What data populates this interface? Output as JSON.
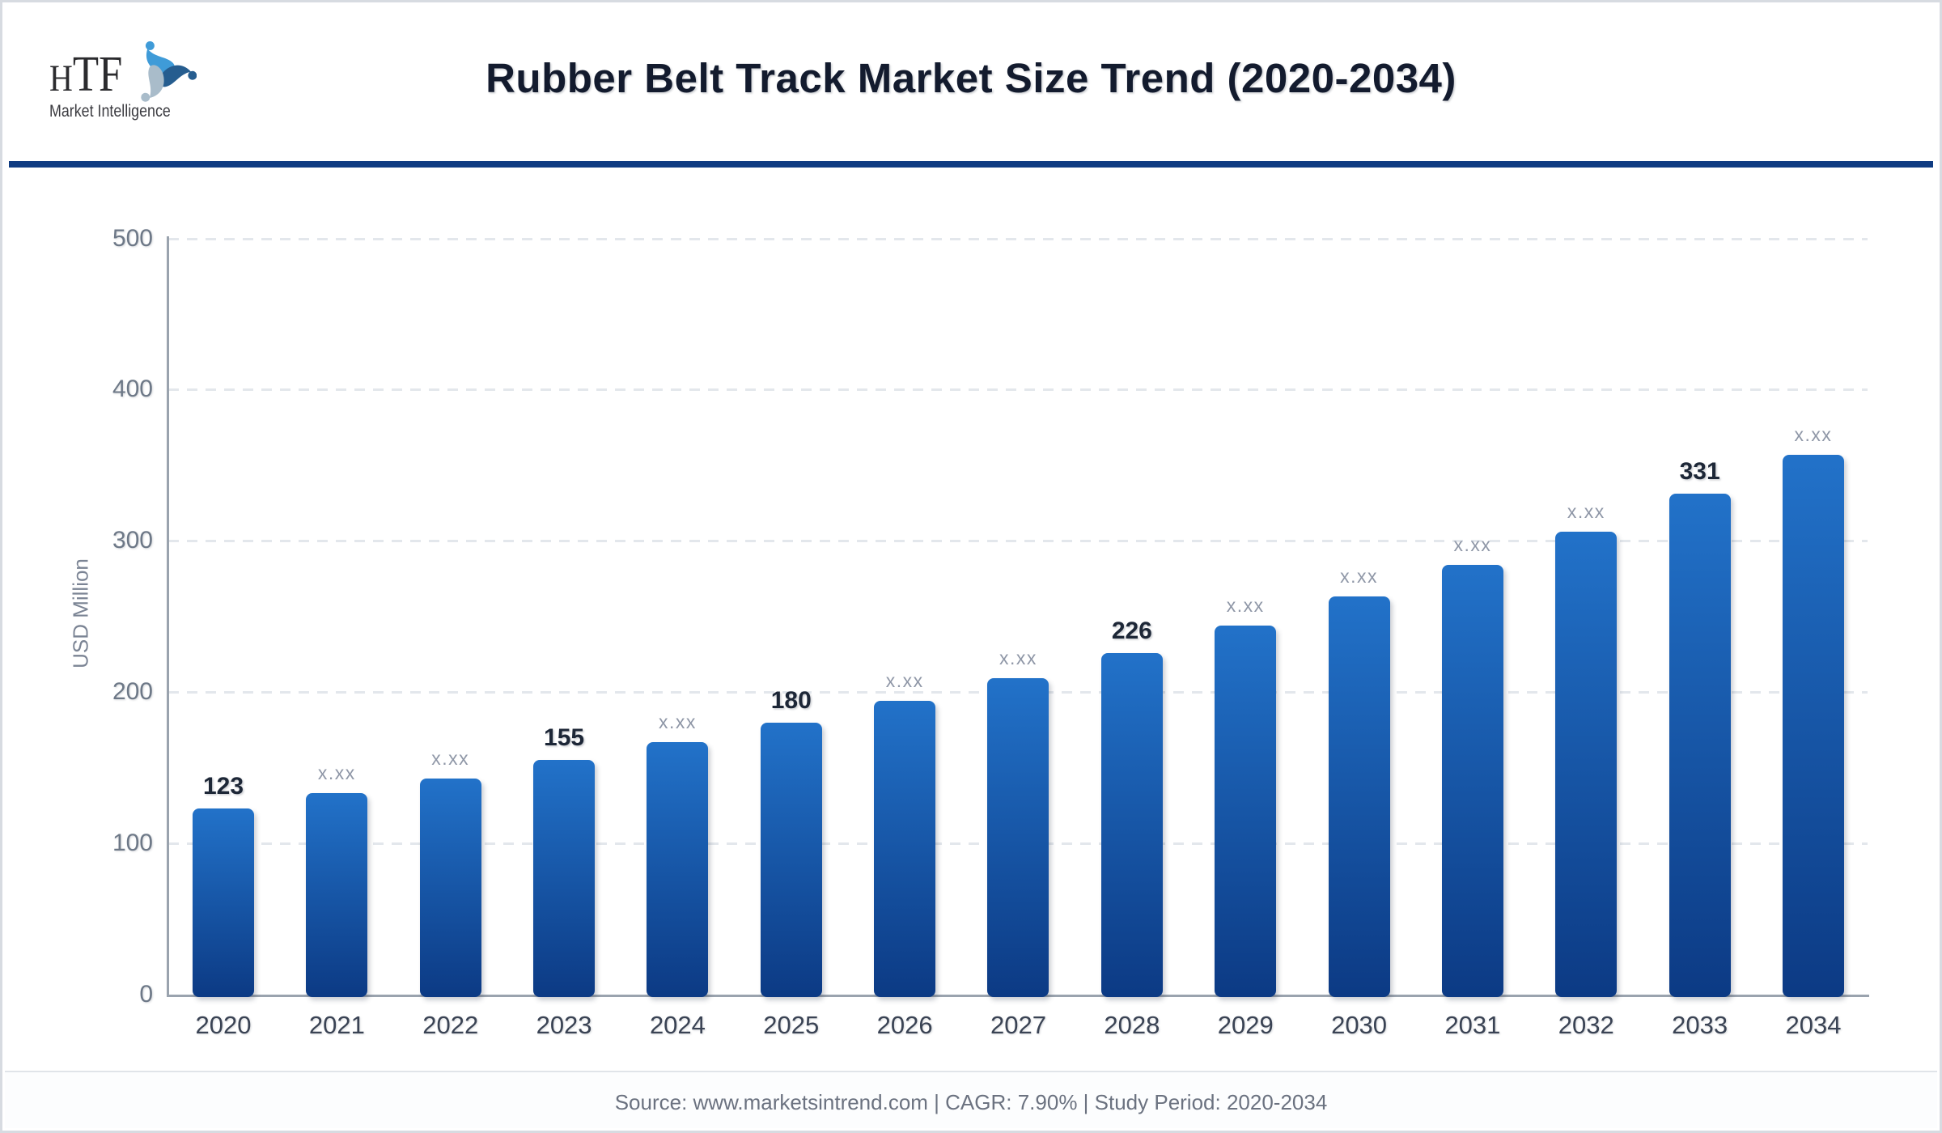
{
  "logo": {
    "acronym_h": "H",
    "acronym_tf": "TF",
    "subtitle": "Market Intelligence",
    "icon": "three-figures-swirl-icon",
    "icon_colors": {
      "light_blue": "#3f9bd8",
      "dark_blue": "#265d8f",
      "gray_blue": "#a9bcca"
    }
  },
  "header": {
    "title": "Rubber Belt Track Market Size Trend (2020-2034)"
  },
  "chart_data": {
    "type": "bar",
    "title": "Rubber Belt Track Market Size Trend (2020-2034)",
    "xlabel": "",
    "ylabel": "USD Million",
    "ylim": [
      0,
      500
    ],
    "yticks": [
      0,
      100,
      200,
      300,
      400,
      500
    ],
    "grid": "horizontal-dashed",
    "legend": "none",
    "categories": [
      "2020",
      "2021",
      "2022",
      "2023",
      "2024",
      "2025",
      "2026",
      "2027",
      "2028",
      "2029",
      "2030",
      "2031",
      "2032",
      "2033",
      "2034"
    ],
    "values": [
      123,
      133,
      143,
      155,
      167,
      180,
      194,
      209,
      226,
      244,
      263,
      284,
      306,
      331,
      357
    ],
    "bar_labels": [
      "123",
      "x.xx",
      "x.xx",
      "155",
      "x.xx",
      "180",
      "x.xx",
      "x.xx",
      "226",
      "x.xx",
      "x.xx",
      "x.xx",
      "x.xx",
      "331",
      "x.xx"
    ],
    "bar_label_emphasis": [
      true,
      false,
      false,
      true,
      false,
      true,
      false,
      false,
      true,
      false,
      false,
      false,
      false,
      true,
      false
    ],
    "colors": {
      "bar_top": "#2272c9",
      "bar_bottom": "#0c3a84",
      "grid": "#e3e7ec",
      "axis": "#9aa3ae",
      "tick_label": "#6d7887",
      "bar_label_strong": "#1d2737",
      "bar_label_masked": "#8f97a7",
      "x_label": "#3a4354"
    }
  },
  "footer": {
    "text": "Source: www.marketsintrend.com  |  CAGR: 7.90%  |  Study Period: 2020-2034"
  },
  "theme": {
    "accent_divider": "#0f3c82",
    "border": "#d7dbe1",
    "title_color": "#131b2e"
  }
}
